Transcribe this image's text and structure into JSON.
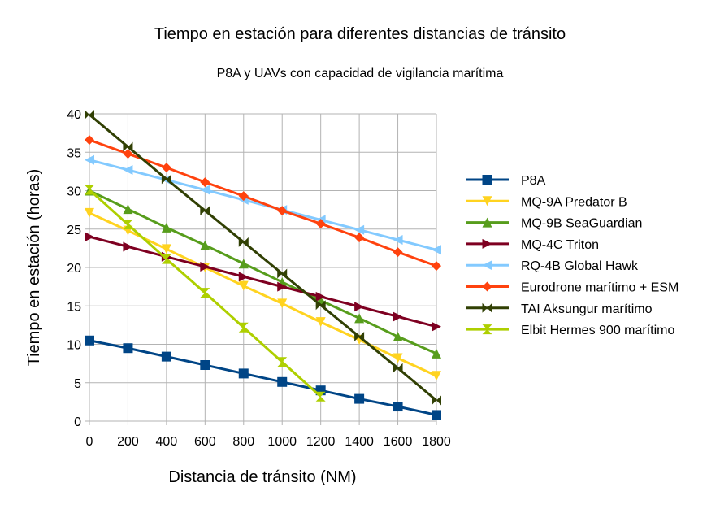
{
  "chart_data": {
    "type": "line",
    "title": "Tiempo en estación para diferentes distancias de tránsito",
    "subtitle": "P8A y UAVs con capacidad de vigilancia marítima",
    "xlabel": "Distancia de tránsito (NM)",
    "ylabel": "Tiempo en estación (horas)",
    "categories": [
      0,
      200,
      400,
      600,
      800,
      1000,
      1200,
      1400,
      1600,
      1800
    ],
    "ylim": [
      0,
      40
    ],
    "yticks": [
      0,
      5,
      10,
      15,
      20,
      25,
      30,
      35,
      40
    ],
    "grid": true,
    "legend": "right",
    "series": [
      {
        "name": "P8A",
        "color": "#004586",
        "marker": "square",
        "values": [
          10.5,
          9.5,
          8.4,
          7.3,
          6.2,
          5.1,
          4.0,
          2.9,
          1.9,
          0.8
        ]
      },
      {
        "name": "MQ-9A Predator B",
        "color": "#ffd320",
        "marker": "triangle-down",
        "values": [
          27.1,
          24.8,
          22.4,
          20.0,
          17.6,
          15.3,
          12.9,
          10.6,
          8.2,
          5.9
        ]
      },
      {
        "name": "MQ-9B SeaGuardian",
        "color": "#579d1c",
        "marker": "triangle-up",
        "values": [
          30.0,
          27.6,
          25.2,
          22.9,
          20.5,
          18.1,
          15.7,
          13.4,
          11.0,
          8.8
        ]
      },
      {
        "name": "MQ-4C Triton",
        "color": "#7e0021",
        "marker": "triangle-right",
        "values": [
          24.0,
          22.7,
          21.4,
          20.1,
          18.8,
          17.5,
          16.2,
          14.9,
          13.6,
          12.3
        ]
      },
      {
        "name": "RQ-4B Global Hawk",
        "color": "#83caff",
        "marker": "triangle-left",
        "values": [
          34.0,
          32.7,
          31.4,
          30.1,
          28.8,
          27.5,
          26.2,
          24.9,
          23.6,
          22.3
        ]
      },
      {
        "name": "Eurodrone marítimo + ESM",
        "color": "#ff420e",
        "marker": "diamond",
        "values": [
          36.6,
          34.8,
          33.0,
          31.1,
          29.3,
          27.4,
          25.7,
          23.9,
          22.0,
          20.2
        ]
      },
      {
        "name": "TAI Aksungur marítimo",
        "color": "#314004",
        "marker": "bowtie",
        "values": [
          39.9,
          35.7,
          31.5,
          27.4,
          23.3,
          19.2,
          15.1,
          11.0,
          6.9,
          2.7
        ]
      },
      {
        "name": "Elbit Hermes 900 marítimo",
        "color": "#aecf00",
        "marker": "hourglass",
        "values": [
          30.1,
          25.6,
          21.1,
          16.7,
          12.2,
          7.7,
          3.2,
          null,
          null,
          null
        ]
      }
    ]
  }
}
